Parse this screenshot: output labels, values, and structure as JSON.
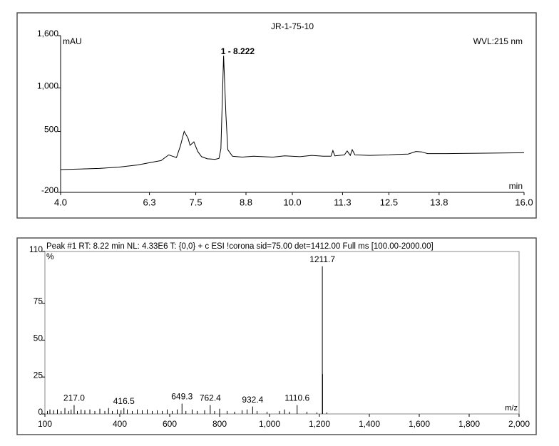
{
  "chart_data": [
    {
      "type": "line",
      "title": "JR-1-75-10",
      "y_label": "mAU",
      "x_label": "min",
      "detector": "WVL:215 nm",
      "annotation": "1 - 8.222",
      "annotation_x": 8.222,
      "x": [
        4.0,
        4.5,
        5.0,
        5.5,
        6.0,
        6.3,
        6.6,
        6.8,
        6.9,
        7.0,
        7.1,
        7.2,
        7.3,
        7.35,
        7.45,
        7.55,
        7.65,
        7.8,
        8.0,
        8.1,
        8.15,
        8.22,
        8.28,
        8.33,
        8.45,
        8.7,
        9.0,
        9.5,
        9.8,
        10.2,
        10.5,
        10.8,
        11.0,
        11.05,
        11.1,
        11.35,
        11.42,
        11.5,
        11.55,
        11.62,
        12.0,
        12.5,
        12.7,
        13.0,
        13.2,
        13.35,
        13.5,
        14.0,
        15.0,
        16.0
      ],
      "series": [
        {
          "name": "JR-1-75-10",
          "color": "#000000",
          "values": [
            62,
            68,
            75,
            90,
            115,
            140,
            165,
            230,
            215,
            200,
            330,
            500,
            420,
            340,
            380,
            270,
            210,
            185,
            180,
            190,
            300,
            1370,
            700,
            290,
            215,
            205,
            215,
            205,
            220,
            210,
            225,
            215,
            215,
            280,
            220,
            230,
            275,
            225,
            290,
            230,
            225,
            230,
            235,
            240,
            270,
            265,
            245,
            245,
            250,
            255
          ]
        }
      ],
      "xlim": [
        4.0,
        16.0
      ],
      "xticks": [
        {
          "value": 4,
          "label": "4.0"
        },
        6.3,
        7.5,
        8.8,
        {
          "value": 10,
          "label": "10.0"
        },
        11.3,
        12.5,
        13.8,
        {
          "value": 16,
          "label": "16.0"
        }
      ],
      "ylim": [
        -200,
        1600
      ],
      "yticks": [
        -200,
        500,
        {
          "value": 1000,
          "label": "1,000"
        },
        {
          "value": 1600,
          "label": "1,600"
        }
      ]
    },
    {
      "type": "stick",
      "title": "Peak #1  RT: 8.22 min  NL: 4.33E6    T: {0,0}  + c ESI !corona sid=75.00  det=1412.00 Full ms [100.00-2000.00]",
      "y_label": "%",
      "x_label": "m/z",
      "x": [
        110,
        120,
        135,
        150,
        165,
        180,
        195,
        205,
        217.0,
        230,
        245,
        260,
        280,
        300,
        320,
        340,
        355,
        370,
        390,
        405,
        416.5,
        430,
        450,
        470,
        490,
        510,
        530,
        550,
        570,
        590,
        610,
        630,
        649.3,
        665,
        690,
        710,
        740,
        762.4,
        780,
        800,
        830,
        860,
        890,
        910,
        932.4,
        950,
        990,
        1040,
        1060,
        1080,
        1110.6,
        1150,
        1190,
        1211.7,
        1212.7,
        1230
      ],
      "x_labels": [
        null,
        null,
        null,
        null,
        null,
        null,
        null,
        null,
        "217.0",
        null,
        null,
        null,
        null,
        null,
        null,
        null,
        null,
        null,
        null,
        null,
        "416.5",
        null,
        null,
        null,
        null,
        null,
        null,
        null,
        null,
        null,
        null,
        null,
        "649.3",
        null,
        null,
        null,
        null,
        "762.4",
        null,
        null,
        null,
        null,
        null,
        null,
        "932.4",
        null,
        null,
        null,
        null,
        null,
        "1110.6",
        null,
        null,
        "1211.7",
        null,
        null
      ],
      "series": [
        {
          "name": "Peak #1",
          "color": "#000000",
          "values": [
            2,
            3,
            2.5,
            3,
            2,
            4,
            2,
            3,
            6,
            2,
            3,
            2.5,
            3,
            2,
            3.5,
            2,
            4,
            2,
            3,
            2.5,
            4,
            3,
            2,
            3,
            2.5,
            3,
            2,
            2.5,
            2,
            3,
            2,
            3,
            7,
            2,
            3,
            2,
            2.5,
            6,
            2,
            3.5,
            2,
            1.5,
            2.5,
            3,
            5,
            2,
            1.5,
            2,
            3,
            1.5,
            6,
            1.5,
            1,
            100,
            27,
            1
          ]
        }
      ],
      "xlim": [
        100,
        2000
      ],
      "xticks": [
        100,
        400,
        600,
        800,
        {
          "value": 1000,
          "label": "1,000"
        },
        {
          "value": 1200,
          "label": "1,200"
        },
        {
          "value": 1400,
          "label": "1,400"
        },
        {
          "value": 1600,
          "label": "1,600"
        },
        {
          "value": 1800,
          "label": "1,800"
        },
        {
          "value": 2000,
          "label": "2,000"
        }
      ],
      "ylim": [
        0,
        110
      ],
      "yticks": [
        0,
        25,
        50,
        75,
        110
      ]
    }
  ]
}
